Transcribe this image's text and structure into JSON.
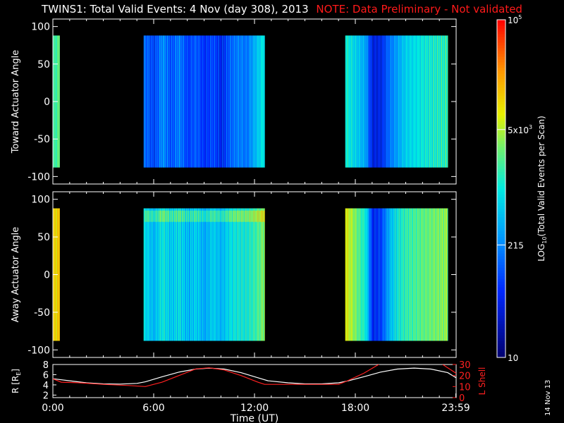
{
  "title": {
    "main": "TWINS1: Total Valid Events:  4 Nov (day 308), 2013",
    "note": "NOTE: Data Preliminary - Not validated"
  },
  "date_stamp": "14 Nov 13",
  "chart_data": [
    {
      "type": "heatmap",
      "panel": "toward",
      "ylabel": "Toward Actuator Angle",
      "ylim": [
        -110,
        110
      ],
      "yticks": [
        100,
        50,
        0,
        -50,
        -100
      ],
      "xlim": [
        0,
        24
      ],
      "angle_range": [
        -88,
        88
      ],
      "data_segments_hours": [
        [
          0.0,
          0.4
        ],
        [
          5.4,
          12.6
        ],
        [
          17.4,
          23.5
        ]
      ],
      "profile_log10_counts": [
        [
          0.0,
          3.2
        ],
        [
          0.35,
          3.4
        ],
        [
          5.4,
          2.2
        ],
        [
          6.0,
          1.9
        ],
        [
          6.5,
          2.4
        ],
        [
          7.0,
          2.0
        ],
        [
          7.5,
          2.3
        ],
        [
          8.0,
          1.9
        ],
        [
          8.5,
          2.1
        ],
        [
          9.0,
          1.8
        ],
        [
          9.5,
          2.0
        ],
        [
          10.0,
          1.7
        ],
        [
          10.5,
          2.1
        ],
        [
          11.0,
          2.3
        ],
        [
          11.5,
          2.2
        ],
        [
          12.0,
          2.6
        ],
        [
          12.5,
          3.0
        ],
        [
          17.4,
          3.1
        ],
        [
          18.0,
          2.8
        ],
        [
          18.6,
          2.5
        ],
        [
          19.0,
          1.6
        ],
        [
          19.5,
          1.7
        ],
        [
          20.0,
          2.2
        ],
        [
          20.5,
          2.5
        ],
        [
          21.0,
          2.8
        ],
        [
          22.0,
          3.0
        ],
        [
          23.0,
          3.1
        ],
        [
          23.5,
          3.2
        ]
      ]
    },
    {
      "type": "heatmap",
      "panel": "away",
      "ylabel": "Away Actuator Angle",
      "ylim": [
        -110,
        110
      ],
      "yticks": [
        100,
        50,
        0,
        -50,
        -100
      ],
      "xlim": [
        0,
        24
      ],
      "angle_range": [
        -88,
        88
      ],
      "data_segments_hours": [
        [
          0.0,
          0.4
        ],
        [
          5.4,
          12.6
        ],
        [
          17.4,
          23.5
        ]
      ],
      "profile_log10_counts": [
        [
          0.0,
          4.0
        ],
        [
          0.35,
          4.1
        ],
        [
          5.4,
          2.9
        ],
        [
          6.0,
          2.6
        ],
        [
          6.5,
          3.0
        ],
        [
          7.0,
          2.7
        ],
        [
          7.5,
          2.9
        ],
        [
          8.0,
          2.6
        ],
        [
          8.5,
          2.8
        ],
        [
          9.0,
          2.5
        ],
        [
          9.5,
          2.8
        ],
        [
          10.0,
          2.6
        ],
        [
          10.5,
          2.9
        ],
        [
          11.0,
          3.0
        ],
        [
          11.5,
          3.0
        ],
        [
          12.0,
          3.2
        ],
        [
          12.5,
          3.5
        ],
        [
          17.4,
          3.9
        ],
        [
          18.0,
          3.5
        ],
        [
          18.6,
          3.0
        ],
        [
          19.0,
          1.7
        ],
        [
          19.5,
          1.9
        ],
        [
          20.0,
          2.6
        ],
        [
          20.5,
          3.0
        ],
        [
          21.0,
          3.2
        ],
        [
          22.0,
          3.4
        ],
        [
          23.0,
          3.5
        ],
        [
          23.5,
          3.6
        ]
      ]
    },
    {
      "type": "line",
      "panel": "orbit",
      "xlabel": "Time (UT)",
      "xticks": [
        {
          "t": 0,
          "label": "0:00"
        },
        {
          "t": 6,
          "label": "6:00"
        },
        {
          "t": 12,
          "label": "12:00"
        },
        {
          "t": 18,
          "label": "18:00"
        },
        {
          "t": 23.98,
          "label": "23:59"
        }
      ],
      "xlim": [
        0,
        24
      ],
      "y_left": {
        "label": "R [R",
        "label_sub": "E",
        "label_end": "]",
        "ylim": [
          1.5,
          8
        ],
        "ticks": [
          8,
          6,
          4,
          2
        ],
        "color": "#ffffff"
      },
      "y_right": {
        "label": "L Shell",
        "ylim": [
          0,
          30
        ],
        "ticks": [
          30,
          20,
          10,
          0
        ],
        "color": "#ff2020"
      },
      "series": [
        {
          "axis": "left",
          "color": "#ffffff",
          "x": [
            0,
            1,
            2,
            3,
            4,
            5,
            5.5,
            6.5,
            7.5,
            8.5,
            9.3,
            10.2,
            11.2,
            12.2,
            12.8,
            14,
            15,
            16,
            17,
            17.6,
            18.5,
            19.5,
            20.5,
            21.5,
            22.5,
            23.5,
            24
          ],
          "y": [
            5.2,
            4.8,
            4.4,
            4.2,
            4.15,
            4.3,
            4.6,
            5.6,
            6.5,
            7.1,
            7.3,
            7.1,
            6.4,
            5.4,
            4.8,
            4.4,
            4.2,
            4.2,
            4.4,
            4.8,
            5.6,
            6.5,
            7.1,
            7.3,
            7.1,
            6.4,
            5.4
          ]
        },
        {
          "axis": "right",
          "color": "#ff2020",
          "x": [
            0,
            0.5,
            1.5,
            3,
            4.5,
            5.5,
            6.5,
            7.5,
            8.5,
            9.3,
            10.2,
            11.2,
            12.2,
            12.6,
            14,
            15,
            16,
            17,
            17.5,
            18.5,
            19.5
          ],
          "y": [
            17,
            14,
            13.5,
            12,
            11,
            10,
            14,
            20,
            26,
            27,
            25,
            20,
            14,
            12,
            12,
            12,
            12,
            12,
            15,
            22,
            31
          ]
        },
        {
          "axis": "right",
          "color": "#ff2020",
          "x": [
            23.2,
            23.6,
            24
          ],
          "y": [
            30,
            26,
            22
          ]
        }
      ]
    }
  ],
  "colorbar": {
    "label": "LOG",
    "label_sub": "10",
    "label_end": "(Total Valid Events per Scan)",
    "log_range": [
      1,
      5
    ],
    "ticks": [
      {
        "log": 5,
        "mantissa": "",
        "base": "10",
        "exp": "5"
      },
      {
        "log": 3.699,
        "mantissa": "5x",
        "base": "10",
        "exp": "3"
      },
      {
        "log": 2.332,
        "mantissa": "215",
        "base": "",
        "exp": ""
      },
      {
        "log": 1,
        "mantissa": "10",
        "base": "",
        "exp": ""
      }
    ]
  },
  "colors": {
    "background": "#000000",
    "axes": "#ffffff",
    "note": "#ff1a1a",
    "lshell": "#ff2020"
  }
}
